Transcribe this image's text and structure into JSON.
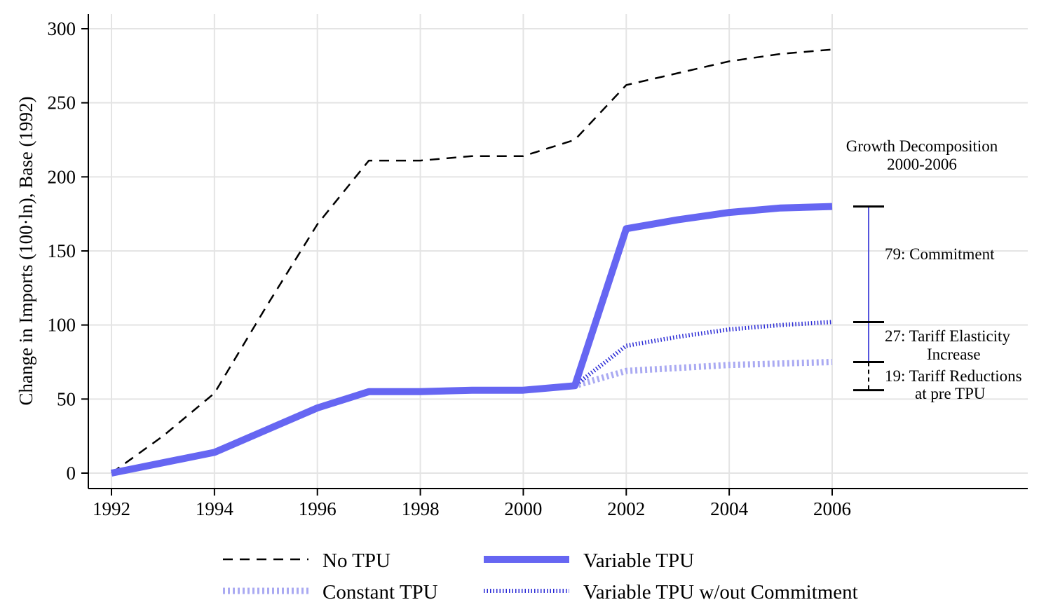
{
  "chart_data": {
    "type": "line",
    "xlabel": "",
    "ylabel": "Change in Imports (100·ln), Base (1992)",
    "xlim": [
      1992,
      2006
    ],
    "ylim": [
      0,
      300
    ],
    "x_ticks": [
      1992,
      1994,
      1996,
      1998,
      2000,
      2002,
      2004,
      2006
    ],
    "x_tick_labels": [
      "1992",
      "1994",
      "1996",
      "1998",
      "2000",
      "2002",
      "2004",
      "2006"
    ],
    "y_ticks": [
      0,
      50,
      100,
      150,
      200,
      250,
      300
    ],
    "y_tick_labels": [
      "0",
      "50",
      "100",
      "150",
      "200",
      "250",
      "300"
    ],
    "grid": true,
    "legend_position": "bottom",
    "series": [
      {
        "key": "no_tpu",
        "name": "No TPU",
        "color": "#000000",
        "style": "dashed",
        "x": [
          1992,
          1993,
          1994,
          1995,
          1996,
          1997,
          1998,
          1999,
          2000,
          2001,
          2002,
          2003,
          2004,
          2005,
          2006
        ],
        "values": [
          0,
          25,
          54,
          112,
          168,
          211,
          211,
          214,
          214,
          225,
          262,
          270,
          278,
          283,
          286
        ]
      },
      {
        "key": "constant_tpu",
        "name": "Constant TPU",
        "color": "#aaaaf2",
        "style": "dotted-thick",
        "x": [
          1992,
          1993,
          1994,
          1995,
          1996,
          1997,
          1998,
          1999,
          2000,
          2001,
          2002,
          2003,
          2004,
          2005,
          2006
        ],
        "values": [
          0,
          7,
          14,
          29,
          44,
          55,
          55,
          56,
          56,
          59,
          69,
          71,
          73,
          74,
          75
        ]
      },
      {
        "key": "variable_tpu_no_commit",
        "name": "Variable TPU w/out Commitment",
        "color": "#2a2ad6",
        "style": "dotted",
        "x": [
          1992,
          1993,
          1994,
          1995,
          1996,
          1997,
          1998,
          1999,
          2000,
          2001,
          2002,
          2003,
          2004,
          2005,
          2006
        ],
        "values": [
          0,
          7,
          14,
          29,
          44,
          55,
          55,
          56,
          56,
          59,
          86,
          92,
          97,
          100,
          102
        ]
      },
      {
        "key": "variable_tpu",
        "name": "Variable TPU",
        "color": "#6666f2",
        "style": "solid-thick",
        "x": [
          1992,
          1993,
          1994,
          1995,
          1996,
          1997,
          1998,
          1999,
          2000,
          2001,
          2002,
          2003,
          2004,
          2005,
          2006
        ],
        "values": [
          0,
          7,
          14,
          29,
          44,
          55,
          55,
          56,
          56,
          59,
          165,
          171,
          176,
          179,
          180
        ]
      }
    ],
    "decomposition": {
      "title_line1": "Growth Decomposition",
      "title_line2": "2000-2006",
      "levels": [
        180,
        102,
        75,
        56
      ],
      "components": [
        {
          "label_line1": "79: Commitment",
          "label_line2": "",
          "from": 102,
          "to": 180
        },
        {
          "label_line1": "27: Tariff Elasticity",
          "label_line2": "Increase",
          "from": 75,
          "to": 102
        },
        {
          "label_line1": "19: Tariff Reductions",
          "label_line2": "at pre TPU",
          "from": 56,
          "to": 75
        }
      ]
    },
    "legend": {
      "entries": [
        "no_tpu",
        "variable_tpu",
        "constant_tpu",
        "variable_tpu_no_commit"
      ]
    }
  }
}
